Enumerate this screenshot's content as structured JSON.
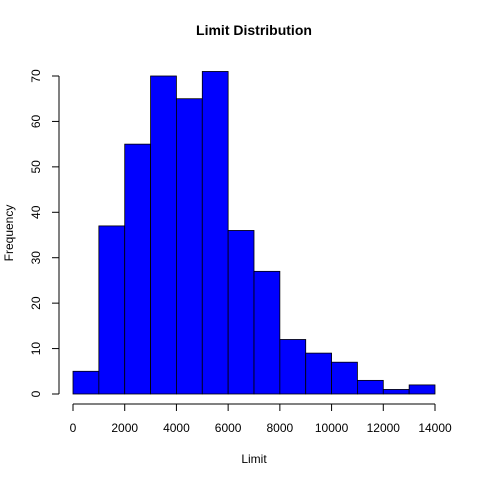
{
  "chart_data": {
    "type": "bar",
    "title": "Limit Distribution",
    "xlabel": "Limit",
    "ylabel": "Frequency",
    "bar_color": "#0000ff",
    "bin_edges": [
      0,
      1000,
      2000,
      3000,
      4000,
      5000,
      6000,
      7000,
      8000,
      9000,
      10000,
      11000,
      12000,
      13000,
      14000
    ],
    "values": [
      5,
      37,
      55,
      70,
      65,
      71,
      36,
      27,
      12,
      9,
      7,
      3,
      1,
      2
    ],
    "xlim": [
      0,
      14000
    ],
    "ylim": [
      0,
      70
    ],
    "x_ticks": [
      0,
      2000,
      4000,
      6000,
      8000,
      10000,
      12000,
      14000
    ],
    "y_ticks": [
      0,
      10,
      20,
      30,
      40,
      50,
      60,
      70
    ],
    "grid": false
  }
}
